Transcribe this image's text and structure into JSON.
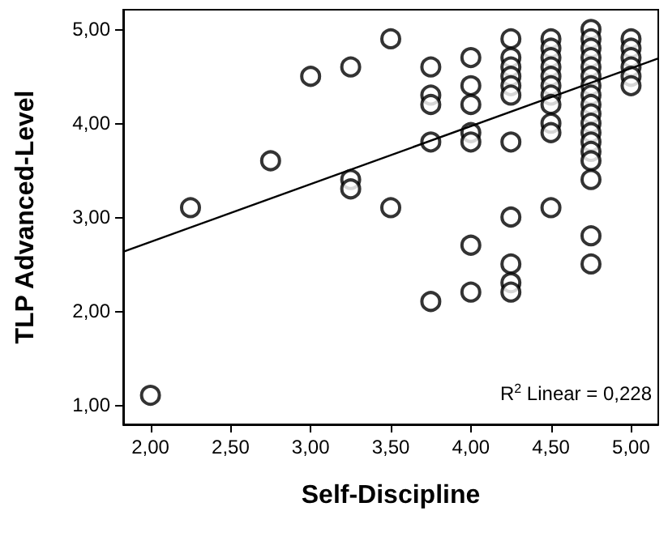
{
  "chart_data": {
    "type": "scatter",
    "xlabel": "Self-Discipline",
    "ylabel": "TLP Advanced-Level",
    "marker": "circle",
    "grid": false,
    "xlim": [
      1.83,
      5.17
    ],
    "ylim": [
      0.79,
      5.21
    ],
    "xticks": [
      {
        "value": 2,
        "label": "2,00"
      },
      {
        "value": 2.5,
        "label": "2,50"
      },
      {
        "value": 3,
        "label": "3,00"
      },
      {
        "value": 3.5,
        "label": "3,50"
      },
      {
        "value": 4,
        "label": "4,00"
      },
      {
        "value": 4.5,
        "label": "4,50"
      },
      {
        "value": 5,
        "label": "5,00"
      }
    ],
    "yticks": [
      {
        "value": 1,
        "label": "1,00"
      },
      {
        "value": 2,
        "label": "2,00"
      },
      {
        "value": 3,
        "label": "3,00"
      },
      {
        "value": 4,
        "label": "4,00"
      },
      {
        "value": 5,
        "label": "5,00"
      }
    ],
    "annotations": [
      "R$^{2}$ Linear = 0,228"
    ],
    "series": [
      {
        "color": "#000000",
        "x": [
          2,
          2.25,
          2.75,
          3,
          3.25,
          3.25,
          3.25,
          3.5,
          3.5,
          3.75,
          3.75,
          3.75,
          3.75,
          3.75,
          4,
          4,
          4,
          4,
          4,
          4,
          4,
          4.25,
          4.25,
          4.25,
          4.25,
          4.25,
          4.25,
          4.25,
          4.25,
          4.25,
          4.25,
          4.25,
          4.5,
          4.5,
          4.5,
          4.5,
          4.5,
          4.5,
          4.5,
          4.5,
          4.5,
          4.5,
          4.5,
          4.75,
          4.75,
          4.75,
          4.75,
          4.75,
          4.75,
          4.75,
          4.75,
          4.75,
          4.75,
          4.75,
          4.75,
          4.75,
          4.75,
          4.75,
          4.75,
          4.75,
          4.75,
          5,
          5,
          5,
          5,
          5,
          5
        ],
        "values": [
          1.1,
          3.1,
          3.6,
          4.5,
          4.6,
          3.4,
          3.3,
          4.9,
          3.1,
          4.6,
          4.3,
          4.2,
          3.8,
          2.1,
          4.7,
          4.4,
          4.2,
          3.9,
          3.8,
          2.7,
          2.2,
          4.9,
          4.7,
          4.6,
          4.5,
          4.4,
          4.3,
          3.8,
          3.0,
          2.5,
          2.3,
          2.2,
          4.9,
          4.8,
          4.7,
          4.6,
          4.5,
          4.4,
          4.3,
          4.2,
          4.0,
          3.9,
          3.1,
          5.0,
          4.9,
          4.8,
          4.7,
          4.6,
          4.5,
          4.4,
          4.3,
          4.2,
          4.1,
          4.0,
          3.9,
          3.8,
          3.7,
          3.6,
          3.4,
          2.8,
          2.5,
          4.9,
          4.8,
          4.7,
          4.6,
          4.5,
          4.4
        ]
      },
      {
        "type": "line",
        "color": "#000000",
        "marker": "none",
        "x": [
          1.83,
          5.17
        ],
        "values": [
          2.63,
          4.69
        ]
      }
    ]
  }
}
